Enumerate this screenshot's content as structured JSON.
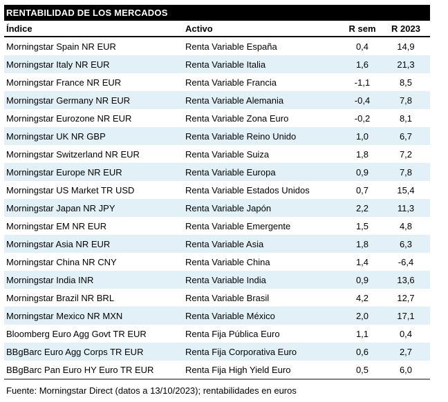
{
  "title": "RENTABILIDAD DE LOS MERCADOS",
  "footer": "Fuente: Morningstar Direct (datos a 13/10/2023); rentabilidades en euros",
  "colors": {
    "title_bg": "#000000",
    "title_text": "#ffffff",
    "stripe": "#e2f0f7",
    "text": "#000000",
    "header_rule": "#000000",
    "footer_rule": "#808080"
  },
  "chart_data": {
    "type": "table",
    "title": "RENTABILIDAD DE LOS MERCADOS",
    "columns": [
      "Índice",
      "Activo",
      "R sem",
      "R 2023"
    ],
    "rows": [
      {
        "indice": "Morningstar Spain NR EUR",
        "activo": "Renta Variable España",
        "r_sem": "0,4",
        "r_2023": "14,9"
      },
      {
        "indice": "Morningstar Italy NR EUR",
        "activo": "Renta Variable Italia",
        "r_sem": "1,6",
        "r_2023": "21,3"
      },
      {
        "indice": "Morningstar France NR EUR",
        "activo": "Renta Variable Francia",
        "r_sem": "-1,1",
        "r_2023": "8,5"
      },
      {
        "indice": "Morningstar Germany NR EUR",
        "activo": "Renta Variable Alemania",
        "r_sem": "-0,4",
        "r_2023": "7,8"
      },
      {
        "indice": "Morningstar Eurozone NR EUR",
        "activo": "Renta Variable Zona Euro",
        "r_sem": "-0,2",
        "r_2023": "8,1"
      },
      {
        "indice": "Morningstar UK NR GBP",
        "activo": "Renta Variable Reino Unido",
        "r_sem": "1,0",
        "r_2023": "6,7"
      },
      {
        "indice": "Morningstar Switzerland NR EUR",
        "activo": "Renta Variable Suiza",
        "r_sem": "1,8",
        "r_2023": "7,2"
      },
      {
        "indice": "Morningstar Europe NR EUR",
        "activo": "Renta Variable Europa",
        "r_sem": "0,9",
        "r_2023": "7,8"
      },
      {
        "indice": "Morningstar US Market TR USD",
        "activo": "Renta Variable Estados Unidos",
        "r_sem": "0,7",
        "r_2023": "15,4"
      },
      {
        "indice": "Morningstar Japan NR JPY",
        "activo": "Renta Variable Japón",
        "r_sem": "2,2",
        "r_2023": "11,3"
      },
      {
        "indice": "Morningstar EM NR EUR",
        "activo": "Renta Variable Emergente",
        "r_sem": "1,5",
        "r_2023": "4,8"
      },
      {
        "indice": "Morningstar Asia NR EUR",
        "activo": "Renta Variable Asia",
        "r_sem": "1,8",
        "r_2023": "6,3"
      },
      {
        "indice": "Morningstar China NR CNY",
        "activo": "Renta Variable China",
        "r_sem": "1,4",
        "r_2023": "-6,4"
      },
      {
        "indice": "Morningstar India INR",
        "activo": "Renta Variable India",
        "r_sem": "0,9",
        "r_2023": "13,6"
      },
      {
        "indice": "Morningstar Brazil NR BRL",
        "activo": "Renta Variable Brasil",
        "r_sem": "4,2",
        "r_2023": "12,7"
      },
      {
        "indice": "Morningstar Mexico NR MXN",
        "activo": "Renta Variable México",
        "r_sem": "2,0",
        "r_2023": "17,1"
      },
      {
        "indice": "Bloomberg Euro Agg Govt TR EUR",
        "activo": "Renta Fija Pública Euro",
        "r_sem": "1,1",
        "r_2023": "0,4"
      },
      {
        "indice": "BBgBarc Euro Agg Corps TR EUR",
        "activo": "Renta Fija Corporativa Euro",
        "r_sem": "0,6",
        "r_2023": "2,7"
      },
      {
        "indice": "BBgBarc Pan Euro HY Euro TR EUR",
        "activo": "Renta Fija High Yield Euro",
        "r_sem": "0,5",
        "r_2023": "6,0"
      }
    ],
    "footnote": "Fuente: Morningstar Direct (datos a 13/10/2023); rentabilidades en euros"
  }
}
